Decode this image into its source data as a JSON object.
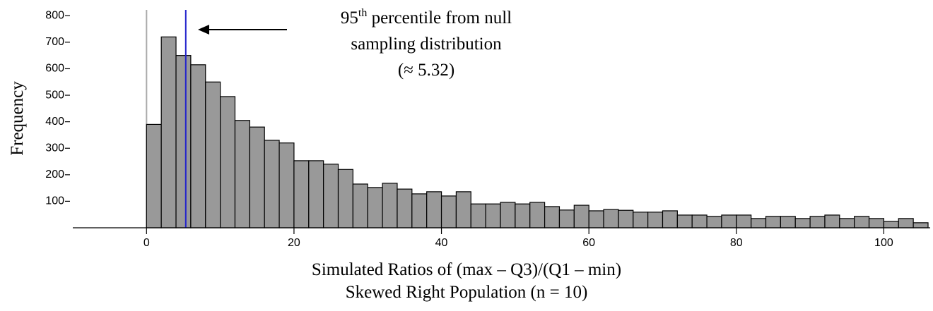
{
  "chart_data": {
    "type": "histogram",
    "xlabel": [
      "Simulated Ratios of (max – Q3)/(Q1 – min)",
      "Skewed Right Population (n = 10)"
    ],
    "ylabel": "Frequency",
    "bins": [
      0,
      2,
      4,
      6,
      8,
      10,
      12,
      14,
      16,
      18,
      20,
      22,
      24,
      26,
      28,
      30,
      32,
      34,
      36,
      38,
      40,
      42,
      44,
      46,
      48,
      50,
      52,
      54,
      56,
      58,
      60,
      62,
      64,
      66,
      68,
      70,
      72,
      74,
      76,
      78,
      80,
      82,
      84,
      86,
      88,
      90,
      92,
      94,
      96,
      98,
      100,
      102,
      104,
      106
    ],
    "values": [
      390,
      720,
      650,
      615,
      550,
      495,
      405,
      380,
      330,
      320,
      253,
      253,
      240,
      220,
      165,
      152,
      168,
      146,
      128,
      136,
      120,
      136,
      90,
      90,
      96,
      90,
      96,
      80,
      67,
      85,
      64,
      69,
      66,
      59,
      59,
      64,
      48,
      48,
      43,
      48,
      48,
      35,
      43,
      43,
      35,
      43,
      48,
      35,
      43,
      35,
      24,
      35,
      19
    ],
    "color": "#999999",
    "xlim": [
      -10,
      106
    ],
    "xticks": [
      0,
      20,
      40,
      60,
      80,
      100
    ],
    "ylim": [
      0,
      830
    ],
    "yticks": [
      100,
      200,
      300,
      400,
      500,
      600,
      700,
      800
    ],
    "zero_line": {
      "value": 0,
      "color": "#aaaaaa"
    },
    "percentile_line": {
      "value": 5.32,
      "color": "#2222cc"
    },
    "annotation": {
      "number": "95",
      "superscript": "th",
      "rest": " percentile from null",
      "lines": [
        "sampling distribution",
        "(≈ 5.32)"
      ]
    }
  }
}
